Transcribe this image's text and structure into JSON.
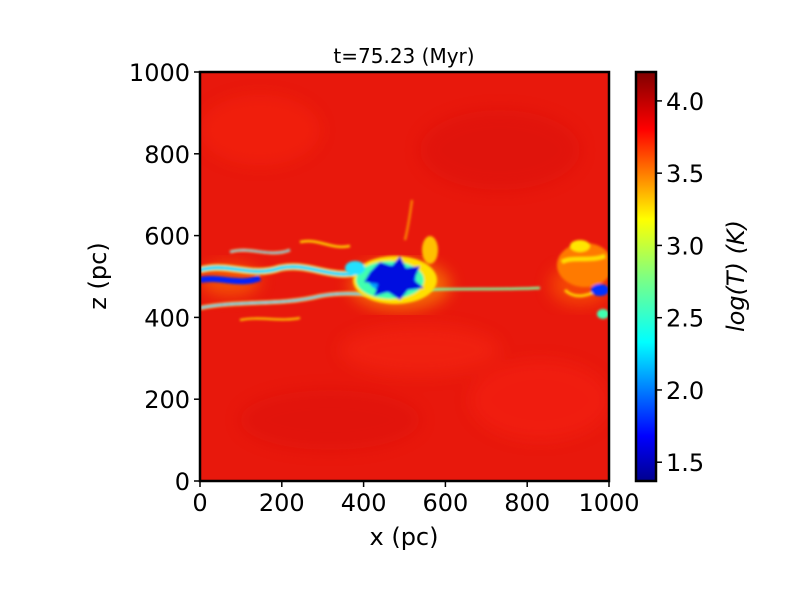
{
  "chart_data": {
    "type": "heatmap",
    "title": "t=75.23 (Myr)",
    "xlabel": "x (pc)",
    "ylabel": "z (pc)",
    "xlim": [
      0,
      1000
    ],
    "ylim": [
      0,
      1000
    ],
    "x_ticks": [
      0,
      200,
      400,
      600,
      800,
      1000
    ],
    "y_ticks": [
      0,
      200,
      400,
      600,
      800,
      1000
    ],
    "grid": false,
    "colormap": "jet",
    "colorbar": {
      "label": "log(T) (K)",
      "range": [
        1.37,
        4.2
      ],
      "ticks": [
        1.5,
        2.0,
        2.5,
        3.0,
        3.5,
        4.0
      ]
    },
    "description_regions": [
      {
        "x_range": [
          0,
          1000
        ],
        "z_range": [
          0,
          380
        ],
        "log_T": 4.1
      },
      {
        "x_range": [
          0,
          1000
        ],
        "z_range": [
          620,
          1000
        ],
        "log_T": 4.1
      },
      {
        "x_range": [
          0,
          600
        ],
        "z_range": [
          400,
          600
        ],
        "log_T": 1.5
      },
      {
        "x_range": [
          400,
          520
        ],
        "z_range": [
          440,
          540
        ],
        "log_T": 1.4
      },
      {
        "x_range": [
          860,
          1000
        ],
        "z_range": [
          400,
          580
        ],
        "log_T": 3.3
      }
    ]
  },
  "colors": {
    "hot": "#e8140c",
    "cold": "#0000b0",
    "frame": "#000000"
  }
}
